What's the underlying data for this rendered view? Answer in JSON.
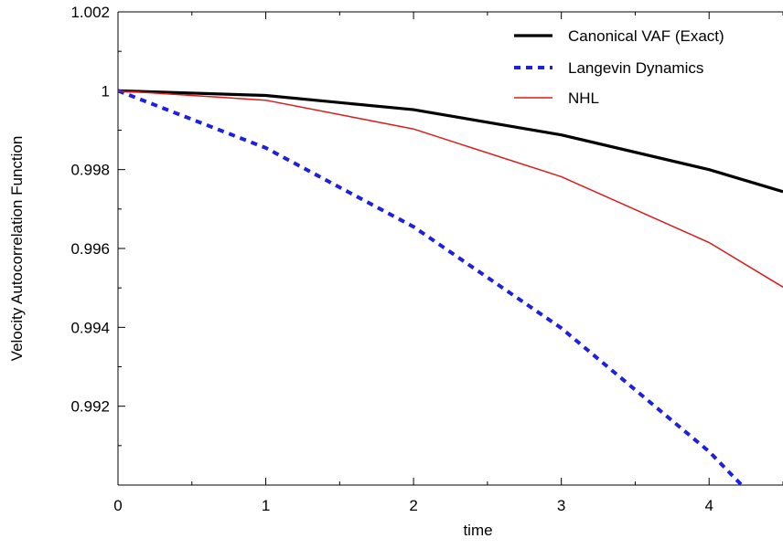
{
  "chart_data": {
    "type": "line",
    "title": "",
    "xlabel": "time",
    "ylabel": "Velocity Autocorrelation Function",
    "xlim": [
      0,
      4.5
    ],
    "ylim": [
      0.99,
      1.002
    ],
    "xticks": [
      0,
      1,
      2,
      3,
      4
    ],
    "xtick_labels": [
      "0",
      "1",
      "2",
      "3",
      "4"
    ],
    "yticks": [
      0.992,
      0.994,
      0.996,
      0.998,
      1,
      1.002
    ],
    "ytick_labels": [
      "0.992",
      "0.994",
      "0.996",
      "0.998",
      "1",
      "1.002"
    ],
    "grid": false,
    "legend_position": "top-right",
    "series": [
      {
        "name": "Canonical VAF (Exact)",
        "color": "#000000",
        "style": "solid",
        "x": [
          0,
          1,
          2,
          3,
          4,
          4.5
        ],
        "y": [
          1.0,
          0.99988,
          0.99952,
          0.99888,
          0.998,
          0.99744
        ]
      },
      {
        "name": "Langevin Dynamics",
        "color": "#1f1fe0",
        "style": "dashed",
        "x": [
          0,
          1,
          2,
          3,
          4,
          4.22
        ],
        "y": [
          1.0,
          0.99855,
          0.99655,
          0.99398,
          0.99085,
          0.99
        ]
      },
      {
        "name": "NHL",
        "color": "#dd1a1a",
        "style": "solid",
        "x": [
          0,
          1,
          2,
          3,
          4,
          4.5
        ],
        "y": [
          1.0,
          0.99976,
          0.99903,
          0.99782,
          0.99615,
          0.99502
        ]
      }
    ]
  }
}
